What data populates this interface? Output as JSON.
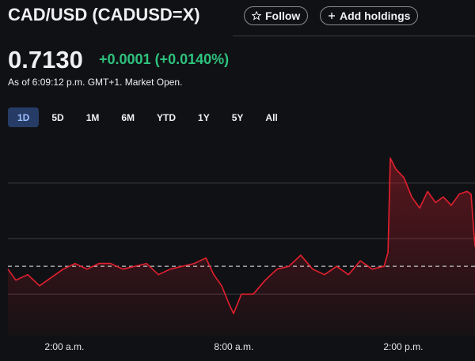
{
  "header": {
    "title": "CAD/USD (CADUSD=X)",
    "follow": "Follow",
    "add_holdings": "Add holdings"
  },
  "quote": {
    "price": "0.7130",
    "change": "+0.0001 (+0.0140%)",
    "as_of": "As of 6:09:12 p.m. GMT+1. Market Open."
  },
  "ranges": [
    "1D",
    "5D",
    "1M",
    "6M",
    "YTD",
    "1Y",
    "5Y",
    "All"
  ],
  "chart_data": {
    "type": "line",
    "color": "#e3202f",
    "x": [
      0,
      0.28,
      0.7,
      1.12,
      1.54,
      1.96,
      2.38,
      2.8,
      3.22,
      3.64,
      4.07,
      4.49,
      4.91,
      5.33,
      5.75,
      6.17,
      6.59,
      7.01,
      7.29,
      7.57,
      7.85,
      7.99,
      8.27,
      8.69,
      9.11,
      9.53,
      9.95,
      10.37,
      10.79,
      11.21,
      11.64,
      12.06,
      12.48,
      12.9,
      13.32,
      13.46,
      13.54,
      13.74,
      14.02,
      14.3,
      14.58,
      14.86,
      15.14,
      15.42,
      15.7,
      15.98,
      16.26,
      16.4,
      16.54
    ],
    "values": [
      0.71289,
      0.71285,
      0.71287,
      0.71283,
      0.71286,
      0.71289,
      0.71291,
      0.71289,
      0.71291,
      0.71291,
      0.71289,
      0.7129,
      0.71291,
      0.71287,
      0.71289,
      0.7129,
      0.71291,
      0.71293,
      0.71287,
      0.71283,
      0.71276,
      0.71273,
      0.7128,
      0.7128,
      0.71285,
      0.71289,
      0.7129,
      0.71294,
      0.71289,
      0.71287,
      0.7129,
      0.71287,
      0.71292,
      0.71289,
      0.7129,
      0.71295,
      0.71329,
      0.71325,
      0.71322,
      0.71315,
      0.71311,
      0.71317,
      0.71313,
      0.71315,
      0.71312,
      0.71316,
      0.71317,
      0.71316,
      0.71297
    ],
    "xlim": [
      0,
      16.54
    ],
    "ylim": [
      0.71265,
      0.71339
    ],
    "xticks": [
      {
        "value": 2,
        "label": "2:00 a.m."
      },
      {
        "value": 8,
        "label": "8:00 a.m."
      },
      {
        "value": 14,
        "label": "2:00 p.m."
      }
    ],
    "grid_lines": [
      0.7128,
      0.713,
      0.7132
    ],
    "previous_close": 0.7129
  }
}
